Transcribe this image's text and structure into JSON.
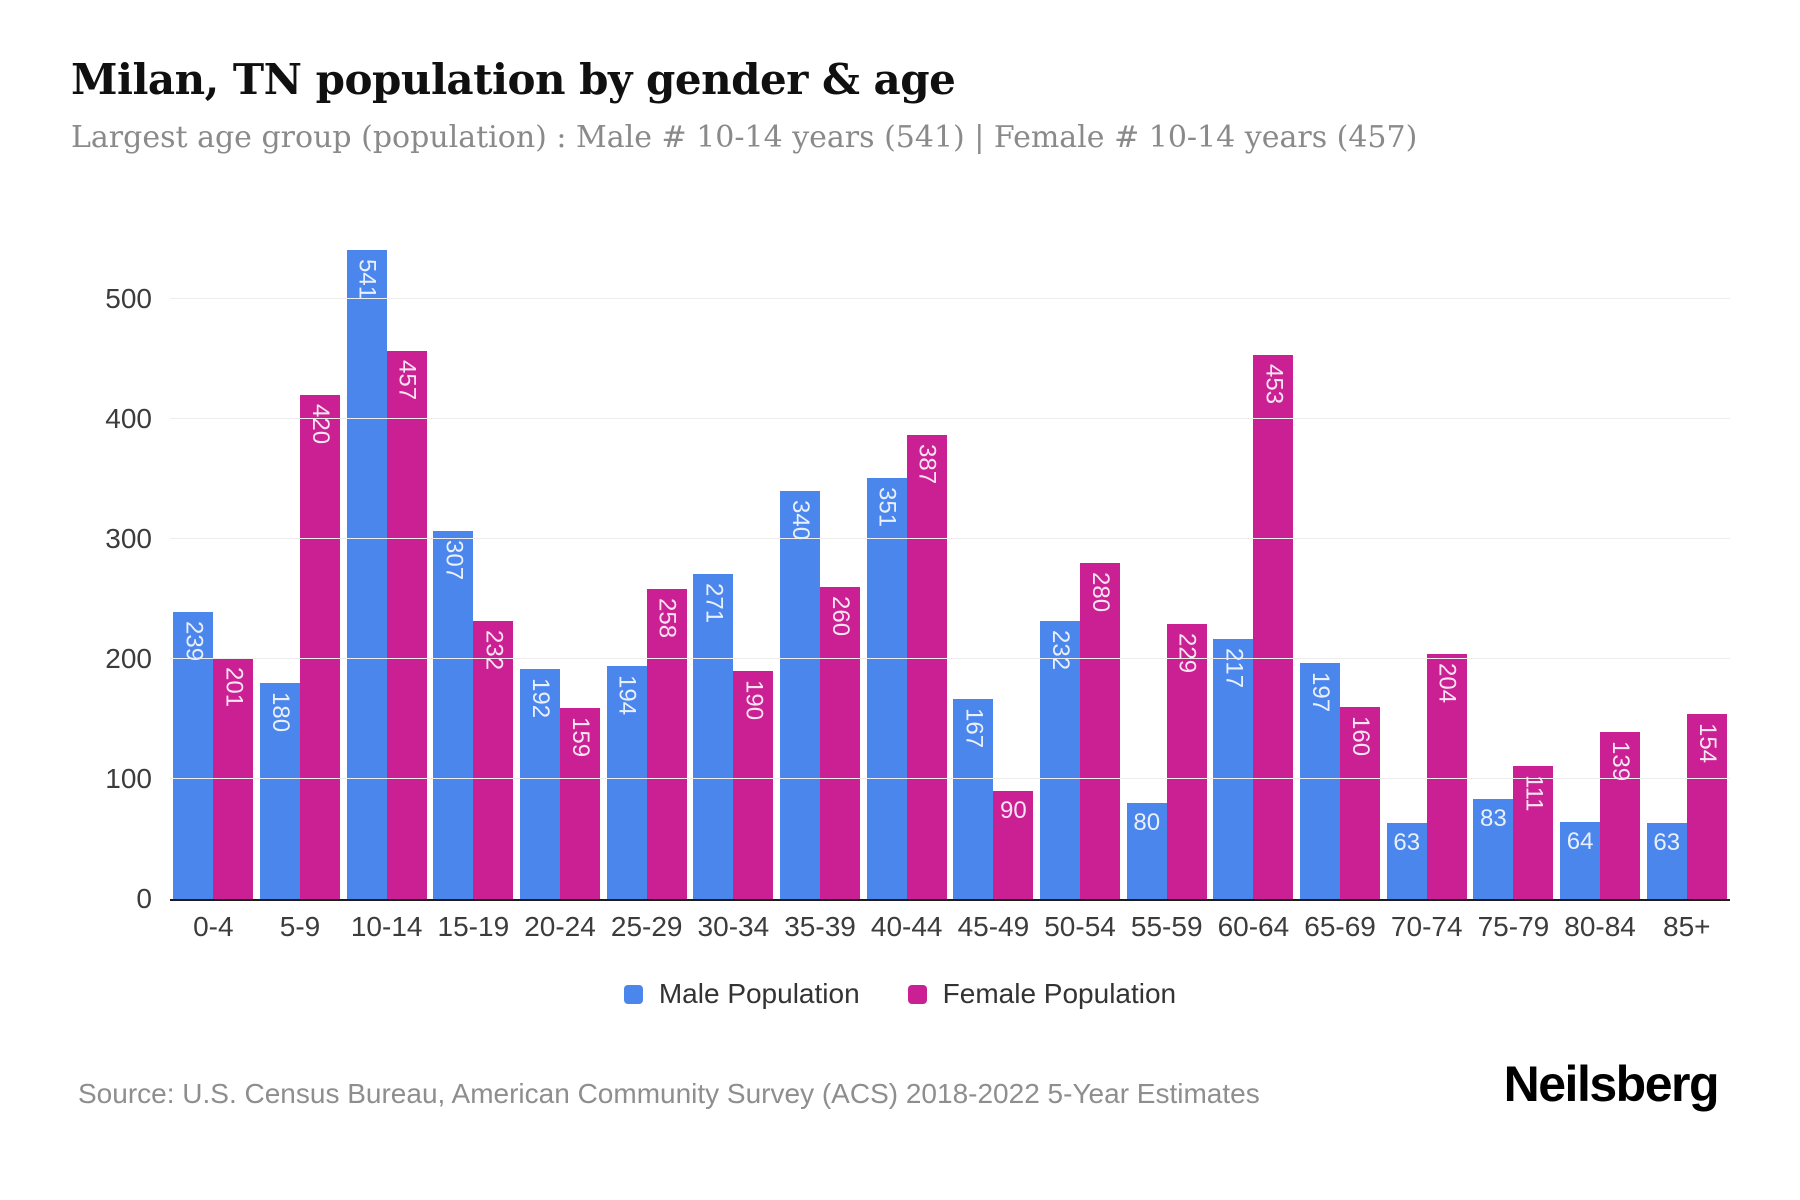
{
  "header": {
    "title": "Milan, TN population by gender & age",
    "subtitle": "Largest age group (population) : Male # 10-14 years (541) | Female # 10-14 years (457)"
  },
  "chart_data": {
    "type": "bar",
    "title": "Milan, TN population by gender & age",
    "categories": [
      "0-4",
      "5-9",
      "10-14",
      "15-19",
      "20-24",
      "25-29",
      "30-34",
      "35-39",
      "40-44",
      "45-49",
      "50-54",
      "55-59",
      "60-64",
      "65-69",
      "70-74",
      "75-79",
      "80-84",
      "85+"
    ],
    "series": [
      {
        "name": "Male Population",
        "color": "#4a86ec",
        "values": [
          239,
          180,
          541,
          307,
          192,
          194,
          271,
          340,
          351,
          167,
          232,
          80,
          217,
          197,
          63,
          83,
          64,
          63
        ]
      },
      {
        "name": "Female Population",
        "color": "#ca2093",
        "values": [
          201,
          420,
          457,
          232,
          159,
          258,
          190,
          260,
          387,
          90,
          280,
          229,
          453,
          160,
          204,
          111,
          139,
          154
        ]
      }
    ],
    "xlabel": "",
    "ylabel": "",
    "yticks": [
      0,
      100,
      200,
      300,
      400,
      500
    ],
    "ylim": [
      0,
      550
    ],
    "grid": "horizontal",
    "legend_position": "bottom",
    "value_labels": "inside-top, white, rotated 90deg when 3 digits"
  },
  "footer": {
    "source": "Source: U.S. Census Bureau, American Community Survey (ACS) 2018-2022 5-Year Estimates",
    "logo": "Neilsberg"
  },
  "colors": {
    "male": "#4a86ec",
    "female": "#ca2093",
    "gridline": "#ededed",
    "axis_line": "#1d1d1d",
    "tick_text": "#3c3c3c",
    "subtitle_text": "#8a8a8a"
  }
}
